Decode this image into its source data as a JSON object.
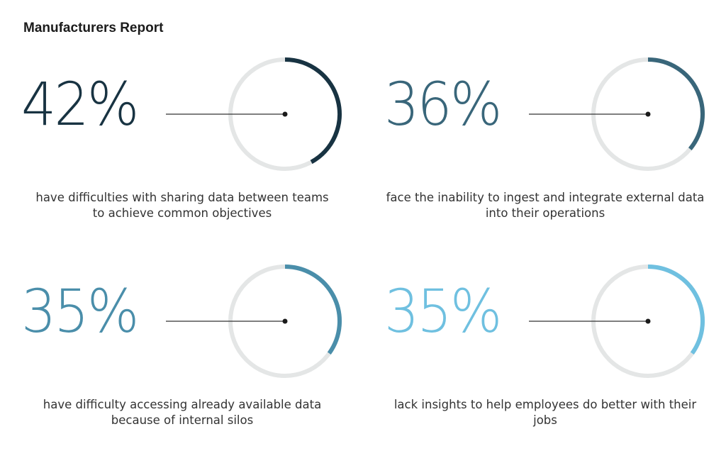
{
  "header": {
    "title": "Manufacturers Report"
  },
  "colors": {
    "track": "#e4e6e6",
    "connector": "#333333",
    "dot": "#1a1a1a"
  },
  "chart_data": [
    {
      "type": "gauge",
      "percent_label": "42%",
      "value": 42,
      "max": 100,
      "color": "#183342",
      "description_lines": [
        "have difficulties with sharing data between teams",
        "to achieve common objectives"
      ]
    },
    {
      "type": "gauge",
      "percent_label": "36%",
      "value": 36,
      "max": 100,
      "color": "#39667a",
      "description_lines": [
        "face the inability to ingest and integrate external data",
        "into their operations"
      ]
    },
    {
      "type": "gauge",
      "percent_label": "35%",
      "value": 35,
      "max": 100,
      "color": "#4a8eaa",
      "description_lines": [
        "have difficulty accessing already available data",
        "because of internal silos"
      ]
    },
    {
      "type": "gauge",
      "percent_label": "35%",
      "value": 35,
      "max": 100,
      "color": "#6fc0e0",
      "description_lines": [
        "lack insights to help employees do better with their",
        "jobs"
      ]
    }
  ]
}
